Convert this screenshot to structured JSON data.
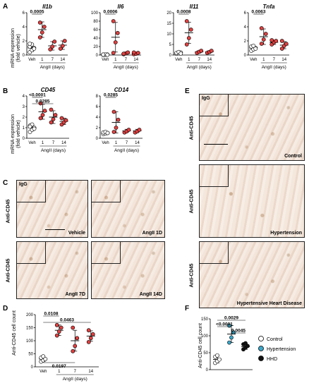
{
  "panel_labels": {
    "A": "A",
    "B": "B",
    "C": "C",
    "D": "D",
    "E": "E",
    "F": "F"
  },
  "axis": {
    "mrna_ylabel_1": "mRNA expression",
    "mrna_ylabel_2": "(fold vehicle)",
    "angii_days": "AngII (days)",
    "cell_count_ylabel": "Anti-CD45 cell count",
    "xcats": [
      "Veh",
      "1",
      "7",
      "14"
    ]
  },
  "colors": {
    "vehicle": "#ffffff",
    "angii": "#e04040",
    "hypertension": "#3aa7c9",
    "hhd": "#111111",
    "control": "#ffffff"
  },
  "chart_data": [
    {
      "type": "scatter",
      "id": "il1b",
      "title": "Il1b",
      "ylabel": "mRNA expression (fold vehicle)",
      "xlabel": "AngII (days)",
      "categories": [
        "Veh",
        "1",
        "7",
        "14"
      ],
      "ylim": [
        0,
        6
      ],
      "yticks": [
        0,
        2,
        4,
        6
      ],
      "groups": [
        {
          "category": "Veh",
          "mean": 1.0,
          "sd": 0.5,
          "points": [
            0.4,
            0.7,
            1.0,
            1.2,
            1.5,
            0.9,
            1.6
          ]
        },
        {
          "category": "1",
          "mean": 3.6,
          "sd": 1.1,
          "points": [
            2.5,
            3.2,
            4.0,
            4.6
          ]
        },
        {
          "category": "7",
          "mean": 1.3,
          "sd": 0.6,
          "points": [
            0.8,
            1.2,
            1.9
          ]
        },
        {
          "category": "14",
          "mean": 1.4,
          "sd": 0.6,
          "points": [
            0.9,
            1.3,
            2.0
          ]
        }
      ],
      "annotations": [
        {
          "text": "0.0005",
          "from": "Veh",
          "to": "1"
        }
      ]
    },
    {
      "type": "scatter",
      "id": "il6",
      "title": "Il6",
      "categories": [
        "Veh",
        "1",
        "7",
        "14"
      ],
      "ylim": [
        0,
        100
      ],
      "yticks": [
        0,
        20,
        40,
        60,
        80,
        100
      ],
      "groups": [
        {
          "category": "Veh",
          "mean": 1.0,
          "sd": 0.5,
          "points": [
            0.5,
            0.8,
            1.2,
            1.0,
            1.5,
            0.6,
            0.9
          ]
        },
        {
          "category": "1",
          "mean": 42,
          "sd": 35,
          "points": [
            5,
            30,
            52,
            80
          ]
        },
        {
          "category": "7",
          "mean": 4,
          "sd": 2,
          "points": [
            2,
            4,
            6,
            3
          ]
        },
        {
          "category": "14",
          "mean": 4,
          "sd": 2,
          "points": [
            2,
            3,
            5,
            6
          ]
        }
      ],
      "annotations": [
        {
          "text": "0.0006",
          "from": "Veh",
          "to": "1"
        }
      ]
    },
    {
      "type": "scatter",
      "id": "il11",
      "title": "Il11",
      "categories": [
        "Veh",
        "1",
        "7",
        "14"
      ],
      "ylim": [
        0,
        20
      ],
      "yticks": [
        0,
        5,
        10,
        15,
        20
      ],
      "groups": [
        {
          "category": "Veh",
          "mean": 1.0,
          "sd": 0.4,
          "points": [
            0.6,
            0.8,
            1.2,
            1.0,
            1.4,
            0.7
          ]
        },
        {
          "category": "1",
          "mean": 10.5,
          "sd": 5,
          "points": [
            5,
            8,
            12,
            16
          ]
        },
        {
          "category": "7",
          "mean": 1.5,
          "sd": 0.5,
          "points": [
            1.0,
            1.5,
            2.0
          ]
        },
        {
          "category": "14",
          "mean": 1.5,
          "sd": 0.5,
          "points": [
            1.0,
            1.4,
            2.0
          ]
        }
      ],
      "annotations": [
        {
          "text": "0.0008",
          "from": "Veh",
          "to": "1"
        }
      ]
    },
    {
      "type": "scatter",
      "id": "tnfa",
      "title": "Tnfa",
      "categories": [
        "Veh",
        "1",
        "7",
        "14"
      ],
      "ylim": [
        0,
        6
      ],
      "yticks": [
        0,
        2,
        4,
        6
      ],
      "groups": [
        {
          "category": "Veh",
          "mean": 1.0,
          "sd": 0.3,
          "points": [
            0.6,
            0.8,
            1.0,
            1.2,
            1.3,
            0.9
          ]
        },
        {
          "category": "1",
          "mean": 2.6,
          "sd": 1.1,
          "points": [
            1.6,
            2.2,
            3.0,
            3.8
          ]
        },
        {
          "category": "7",
          "mean": 1.8,
          "sd": 0.3,
          "points": [
            1.5,
            1.8,
            2.0,
            2.1
          ]
        },
        {
          "category": "14",
          "mean": 1.4,
          "sd": 0.5,
          "points": [
            0.9,
            1.3,
            1.6,
            2.0
          ]
        }
      ],
      "annotations": [
        {
          "text": "0.0063",
          "from": "Veh",
          "to": "1"
        }
      ]
    },
    {
      "type": "scatter",
      "id": "cd45",
      "title": "CD45",
      "categories": [
        "Veh",
        "1",
        "7",
        "14"
      ],
      "ylim": [
        0,
        4
      ],
      "yticks": [
        0,
        1,
        2,
        3,
        4
      ],
      "groups": [
        {
          "category": "Veh",
          "mean": 1.0,
          "sd": 0.3,
          "points": [
            0.6,
            0.8,
            1.0,
            1.2,
            1.3,
            0.9,
            1.1
          ]
        },
        {
          "category": "1",
          "mean": 2.5,
          "sd": 0.7,
          "points": [
            1.9,
            2.2,
            2.6,
            3.3
          ]
        },
        {
          "category": "7",
          "mean": 2.0,
          "sd": 0.6,
          "points": [
            1.5,
            1.8,
            2.2,
            2.7
          ]
        },
        {
          "category": "14",
          "mean": 1.6,
          "sd": 0.3,
          "points": [
            1.3,
            1.5,
            1.7,
            1.9
          ]
        }
      ],
      "annotations": [
        {
          "text": "<0.0001",
          "from": "Veh",
          "to": "1"
        },
        {
          "text": "0.0285",
          "from": "Veh",
          "to": "7"
        }
      ]
    },
    {
      "type": "scatter",
      "id": "cd14",
      "title": "CD14",
      "categories": [
        "Veh",
        "1",
        "7",
        "14"
      ],
      "ylim": [
        0,
        8
      ],
      "yticks": [
        0,
        2,
        4,
        6,
        8
      ],
      "groups": [
        {
          "category": "Veh",
          "mean": 1.0,
          "sd": 0.2,
          "points": [
            0.8,
            0.9,
            1.0,
            1.1,
            1.2,
            1.0
          ]
        },
        {
          "category": "1",
          "mean": 3.0,
          "sd": 2.0,
          "points": [
            1.2,
            2.0,
            3.5,
            5.0
          ]
        },
        {
          "category": "7",
          "mean": 1.4,
          "sd": 0.3,
          "points": [
            1.1,
            1.3,
            1.6
          ]
        },
        {
          "category": "14",
          "mean": 1.4,
          "sd": 0.3,
          "points": [
            1.1,
            1.3,
            1.6
          ]
        }
      ],
      "annotations": [
        {
          "text": "0.0285",
          "from": "Veh",
          "to": "1"
        }
      ]
    },
    {
      "type": "scatter",
      "id": "cd45count",
      "title": "",
      "categories": [
        "Veh",
        "1",
        "7",
        "14"
      ],
      "ylim": [
        0,
        200
      ],
      "yticks": [
        0,
        50,
        100,
        150,
        200
      ],
      "groups": [
        {
          "category": "Veh",
          "mean": 30,
          "sd": 10,
          "points": [
            20,
            25,
            30,
            35,
            40
          ]
        },
        {
          "category": "1",
          "mean": 140,
          "sd": 20,
          "points": [
            120,
            135,
            150,
            160
          ]
        },
        {
          "category": "7",
          "mean": 100,
          "sd": 40,
          "points": [
            60,
            80,
            110,
            150
          ]
        },
        {
          "category": "14",
          "mean": 118,
          "sd": 20,
          "points": [
            95,
            110,
            125,
            140
          ]
        }
      ],
      "annotations": [
        {
          "text": "0.0108",
          "from": "Veh",
          "to": "1"
        },
        {
          "text": "0.0463",
          "from": "Veh",
          "to": "14"
        },
        {
          "text": "0.0197",
          "from": "Veh",
          "to": "7",
          "below": true
        }
      ]
    },
    {
      "type": "scatter",
      "id": "f",
      "title": "",
      "categories": [
        "Control",
        "Hypertension",
        "HHD"
      ],
      "ylim": [
        0,
        150
      ],
      "yticks": [
        0,
        50,
        100,
        150
      ],
      "groups": [
        {
          "category": "Control",
          "mean": 30,
          "sd": 10,
          "points": [
            20,
            25,
            30,
            38,
            42
          ]
        },
        {
          "category": "Hypertension",
          "mean": 105,
          "sd": 25,
          "points": [
            80,
            95,
            110,
            130
          ]
        },
        {
          "category": "HHD",
          "mean": 68,
          "sd": 8,
          "points": [
            60,
            65,
            70,
            75,
            78
          ]
        }
      ],
      "annotations": [
        {
          "text": "0.0029",
          "from": "Control",
          "to": "HHD"
        },
        {
          "text": "<0.0001",
          "from": "Control",
          "to": "Hypertension"
        },
        {
          "text": "0.0045",
          "from": "Hypertension",
          "to": "HHD"
        }
      ],
      "legend": [
        "Control",
        "Hypertension",
        "HHD"
      ]
    }
  ],
  "micro_c": {
    "igg": "IgG",
    "anti": "Anti-CD45",
    "labels": [
      "Vehicle",
      "AngII 1D",
      "AngII 7D",
      "AngII 14D"
    ]
  },
  "micro_e": {
    "igg": "IgG",
    "anti": "Anti-CD45",
    "labels": [
      "Control",
      "Hypertension",
      "Hypertensive Heart Disease"
    ]
  }
}
